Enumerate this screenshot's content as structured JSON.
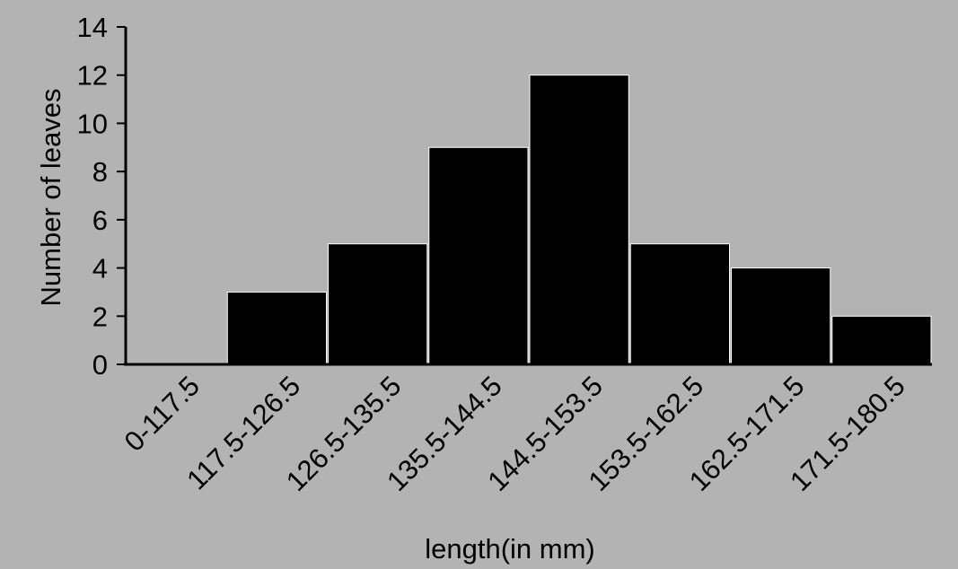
{
  "chart_data": {
    "type": "bar",
    "title": "",
    "xlabel": "length(in mm)",
    "ylabel": "Number of leaves",
    "categories": [
      "0-117.5",
      "117.5-126.5",
      "126.5-135.5",
      "135.5-144.5",
      "144.5-153.5",
      "153.5-162.5",
      "162.5-171.5",
      "171.5-180.5"
    ],
    "values": [
      0,
      3,
      5,
      9,
      12,
      5,
      4,
      2
    ],
    "ylim": [
      0,
      14
    ],
    "yticks": [
      "0",
      "2",
      "4",
      "6",
      "8",
      "10",
      "12",
      "14"
    ],
    "grid": false,
    "legend": "none",
    "bar_color": "#000000",
    "background_color": "#b3b3b3",
    "bar_separator_color": "#ffffff"
  }
}
